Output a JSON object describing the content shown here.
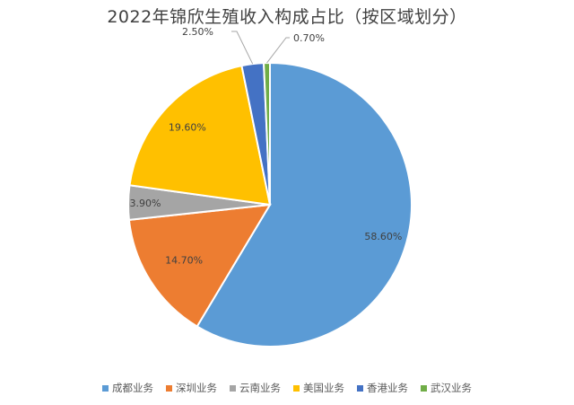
{
  "chart_data": {
    "type": "pie",
    "title": "2022年锦欣生殖收入构成占比（按区域划分）",
    "categories": [
      "成都业务",
      "深圳业务",
      "云南业务",
      "美国业务",
      "香港业务",
      "武汉业务"
    ],
    "values": [
      58.6,
      14.7,
      3.9,
      19.6,
      2.5,
      0.7
    ],
    "data_labels": [
      "58.60%",
      "14.70%",
      "3.90%",
      "19.60%",
      "2.50%",
      "0.70%"
    ],
    "colors": [
      "#5B9BD5",
      "#ED7D31",
      "#A5A5A5",
      "#FFC000",
      "#4472C4",
      "#70AD47"
    ],
    "legend_position": "bottom"
  }
}
